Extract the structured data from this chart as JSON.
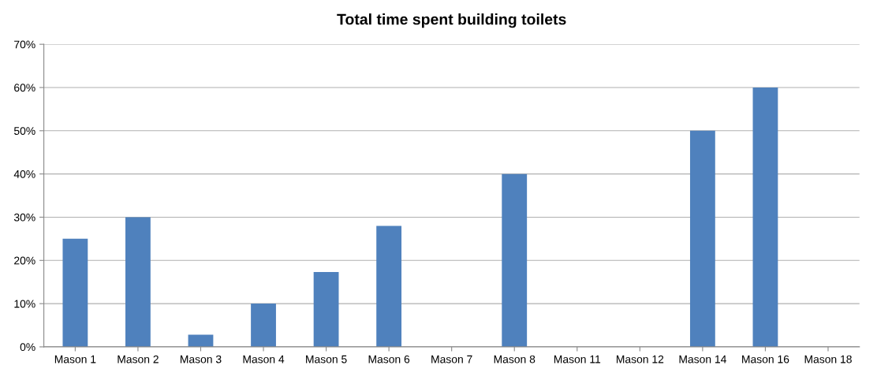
{
  "chart_data": {
    "type": "bar",
    "title": "Total time spent building toilets",
    "categories": [
      "Mason 1",
      "Mason 2",
      "Mason 3",
      "Mason 4",
      "Mason 5",
      "Mason 6",
      "Mason 7",
      "Mason 8",
      "Mason 11",
      "Mason 12",
      "Mason 14",
      "Mason 16",
      "Mason 18"
    ],
    "values": [
      25,
      30,
      2.8,
      10,
      17.3,
      28,
      0,
      40,
      0,
      0,
      50,
      60,
      0
    ],
    "color": "#4f81bd",
    "ylim": [
      0,
      70
    ],
    "yticks": [
      {
        "value": 0,
        "label": "0%"
      },
      {
        "value": 10,
        "label": "10%"
      },
      {
        "value": 20,
        "label": "20%"
      },
      {
        "value": 30,
        "label": "30%"
      },
      {
        "value": 40,
        "label": "40%"
      },
      {
        "value": 50,
        "label": "50%"
      },
      {
        "value": 60,
        "label": "60%"
      },
      {
        "value": 70,
        "label": "70%"
      }
    ],
    "grid": "y"
  }
}
